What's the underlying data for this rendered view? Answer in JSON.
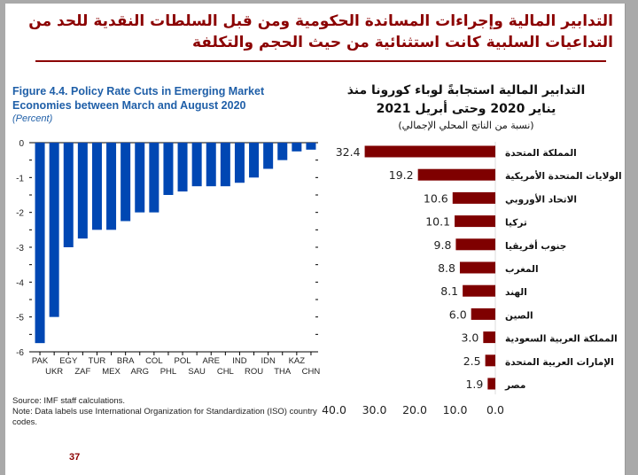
{
  "slide": {
    "title": "التدابير المالية وإجراءات المساندة الحكومية ومن قبل السلطات النقدية للحد من التداعيات السلبية كانت استثنائية من حيث الحجم والتكلفة",
    "page_number": "37",
    "accent": "#8b0000"
  },
  "chart_data": [
    {
      "type": "bar",
      "title": "Figure 4.4.  Policy Rate Cuts in Emerging Market Economies between March and August 2020",
      "subtitle": "(Percent)",
      "categories": [
        "PAK",
        "UKR",
        "EGY",
        "ZAF",
        "TUR",
        "MEX",
        "BRA",
        "ARG",
        "COL",
        "PHL",
        "POL",
        "SAU",
        "ARE",
        "CHL",
        "IND",
        "ROU",
        "IDN",
        "THA",
        "KAZ",
        "CHN"
      ],
      "values": [
        -5.75,
        -5,
        -3,
        -2.75,
        -2.5,
        -2.5,
        -2.25,
        -2,
        -2,
        -1.5,
        -1.4,
        -1.25,
        -1.25,
        -1.25,
        -1.15,
        -1,
        -0.75,
        -0.5,
        -0.25,
        -0.2
      ],
      "ylim": [
        -6,
        0
      ],
      "yticks": [
        "0",
        "-1",
        "-2",
        "-3",
        "-4",
        "-5",
        "-6"
      ],
      "color": "#0047b3",
      "notes": [
        "Source: IMF staff calculations.",
        "Note: Data labels use International Organization for Standardization (ISO) country codes."
      ]
    },
    {
      "type": "bar",
      "orientation": "horizontal",
      "title": "التدابير المالية استجابةً لوباء كورونا منذ يناير 2020 وحتى أبريل 2021",
      "subtitle": "(نسبة من الناتج المحلي الإجمالي)",
      "categories": [
        "المملكة المتحدة",
        "الولايات المتحدة الأمريكية",
        "الاتحاد الأوروبي",
        "تركيا",
        "جنوب أفريقيا",
        "المغرب",
        "الهند",
        "الصين",
        "المملكة العربية السعودية",
        "الإمارات العربية المتحدة",
        "مصر"
      ],
      "values": [
        32.4,
        19.2,
        10.6,
        10.1,
        9.8,
        8.8,
        8.1,
        6.0,
        3.0,
        2.5,
        1.9
      ],
      "labels": [
        "32.4",
        "19.2",
        "10.6",
        "10.1",
        "9.8",
        "8.8",
        "8.1",
        "6.0",
        "3.0",
        "2.5",
        "1.9"
      ],
      "xlim": [
        40,
        0
      ],
      "xticks": [
        "40.0",
        "30.0",
        "20.0",
        "10.0",
        "0.0"
      ],
      "color": "#7f0000"
    }
  ]
}
